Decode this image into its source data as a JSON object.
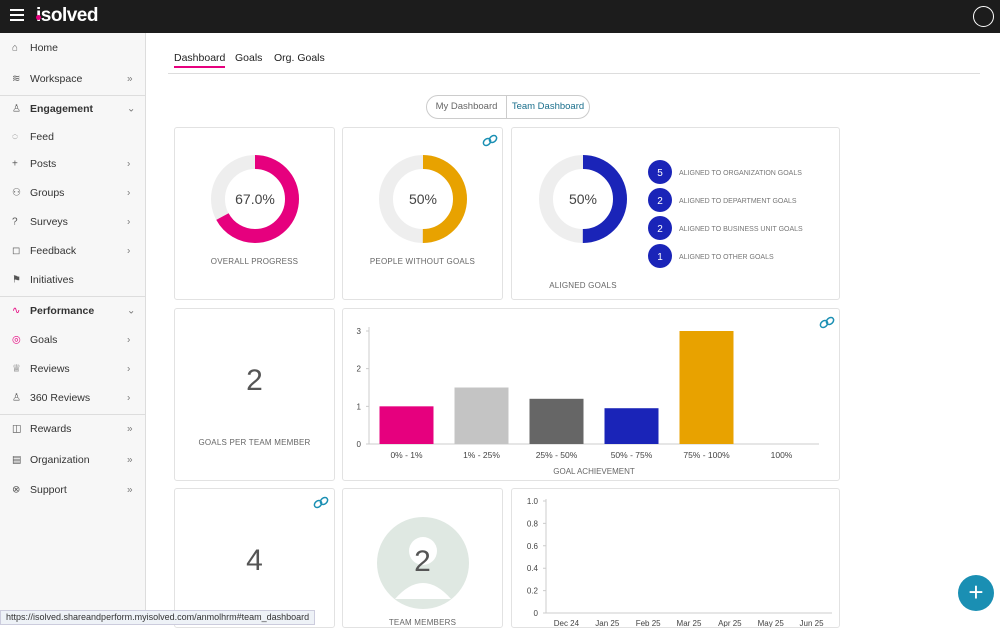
{
  "header": {
    "logo": "isolved"
  },
  "sidebar": {
    "items": [
      "Home",
      "Workspace",
      "Engagement",
      "Feed",
      "Posts",
      "Groups",
      "Surveys",
      "Feedback",
      "Initiatives",
      "Performance",
      "Goals",
      "Reviews",
      "360 Reviews",
      "Rewards",
      "Organization",
      "Support"
    ]
  },
  "tabs": [
    "Dashboard",
    "Goals",
    "Org. Goals"
  ],
  "toggle": [
    "My Dashboard",
    "Team Dashboard"
  ],
  "cards": {
    "overall_progress": {
      "value": 67,
      "value_label": "67.0%",
      "caption": "OVERALL PROGRESS",
      "color": "#e6007e"
    },
    "people_without_goals": {
      "value": 50,
      "value_label": "50%",
      "caption": "PEOPLE WITHOUT GOALS",
      "color": "#e8a200"
    },
    "aligned_goals": {
      "value": 50,
      "value_label": "50%",
      "caption": "ALIGNED GOALS",
      "color": "#1a24b8",
      "breakdown": [
        {
          "count": 5,
          "label": "ALIGNED TO ORGANIZATION GOALS"
        },
        {
          "count": 2,
          "label": "ALIGNED TO DEPARTMENT GOALS"
        },
        {
          "count": 2,
          "label": "ALIGNED TO BUSINESS UNIT GOALS"
        },
        {
          "count": 1,
          "label": "ALIGNED TO OTHER GOALS"
        }
      ]
    },
    "goals_per_team_member": {
      "value": 2,
      "caption": "GOALS PER TEAM MEMBER"
    },
    "goal_achievement": {
      "type": "bar",
      "categories": [
        "0% - 1%",
        "1% - 25%",
        "25% - 50%",
        "50% - 75%",
        "75% - 100%",
        "100%"
      ],
      "values": [
        1,
        1.5,
        1.2,
        0.95,
        3,
        0
      ],
      "colors": [
        "#e6007e",
        "#c4c4c4",
        "#666666",
        "#1a24b8",
        "#e8a200",
        "#999999"
      ],
      "ylim": [
        0,
        3
      ],
      "yticks": [
        0,
        1,
        2,
        3
      ],
      "xlabel": "GOAL ACHIEVEMENT"
    },
    "metric_four": {
      "value": 4
    },
    "team_members": {
      "value": 2,
      "caption": "TEAM MEMBERS"
    },
    "trend": {
      "type": "line",
      "categories": [
        "Dec 24",
        "Jan 25",
        "Feb 25",
        "Mar 25",
        "Apr 25",
        "May 25",
        "Jun 25"
      ],
      "ylim": [
        0,
        1
      ],
      "yticks": [
        0,
        0.2,
        0.4,
        0.6,
        0.8,
        {
          "value": 1,
          "label": "1.0"
        }
      ]
    }
  },
  "status_url": "https://isolved.shareandperform.myisolved.com/anmolhrm#team_dashboard"
}
